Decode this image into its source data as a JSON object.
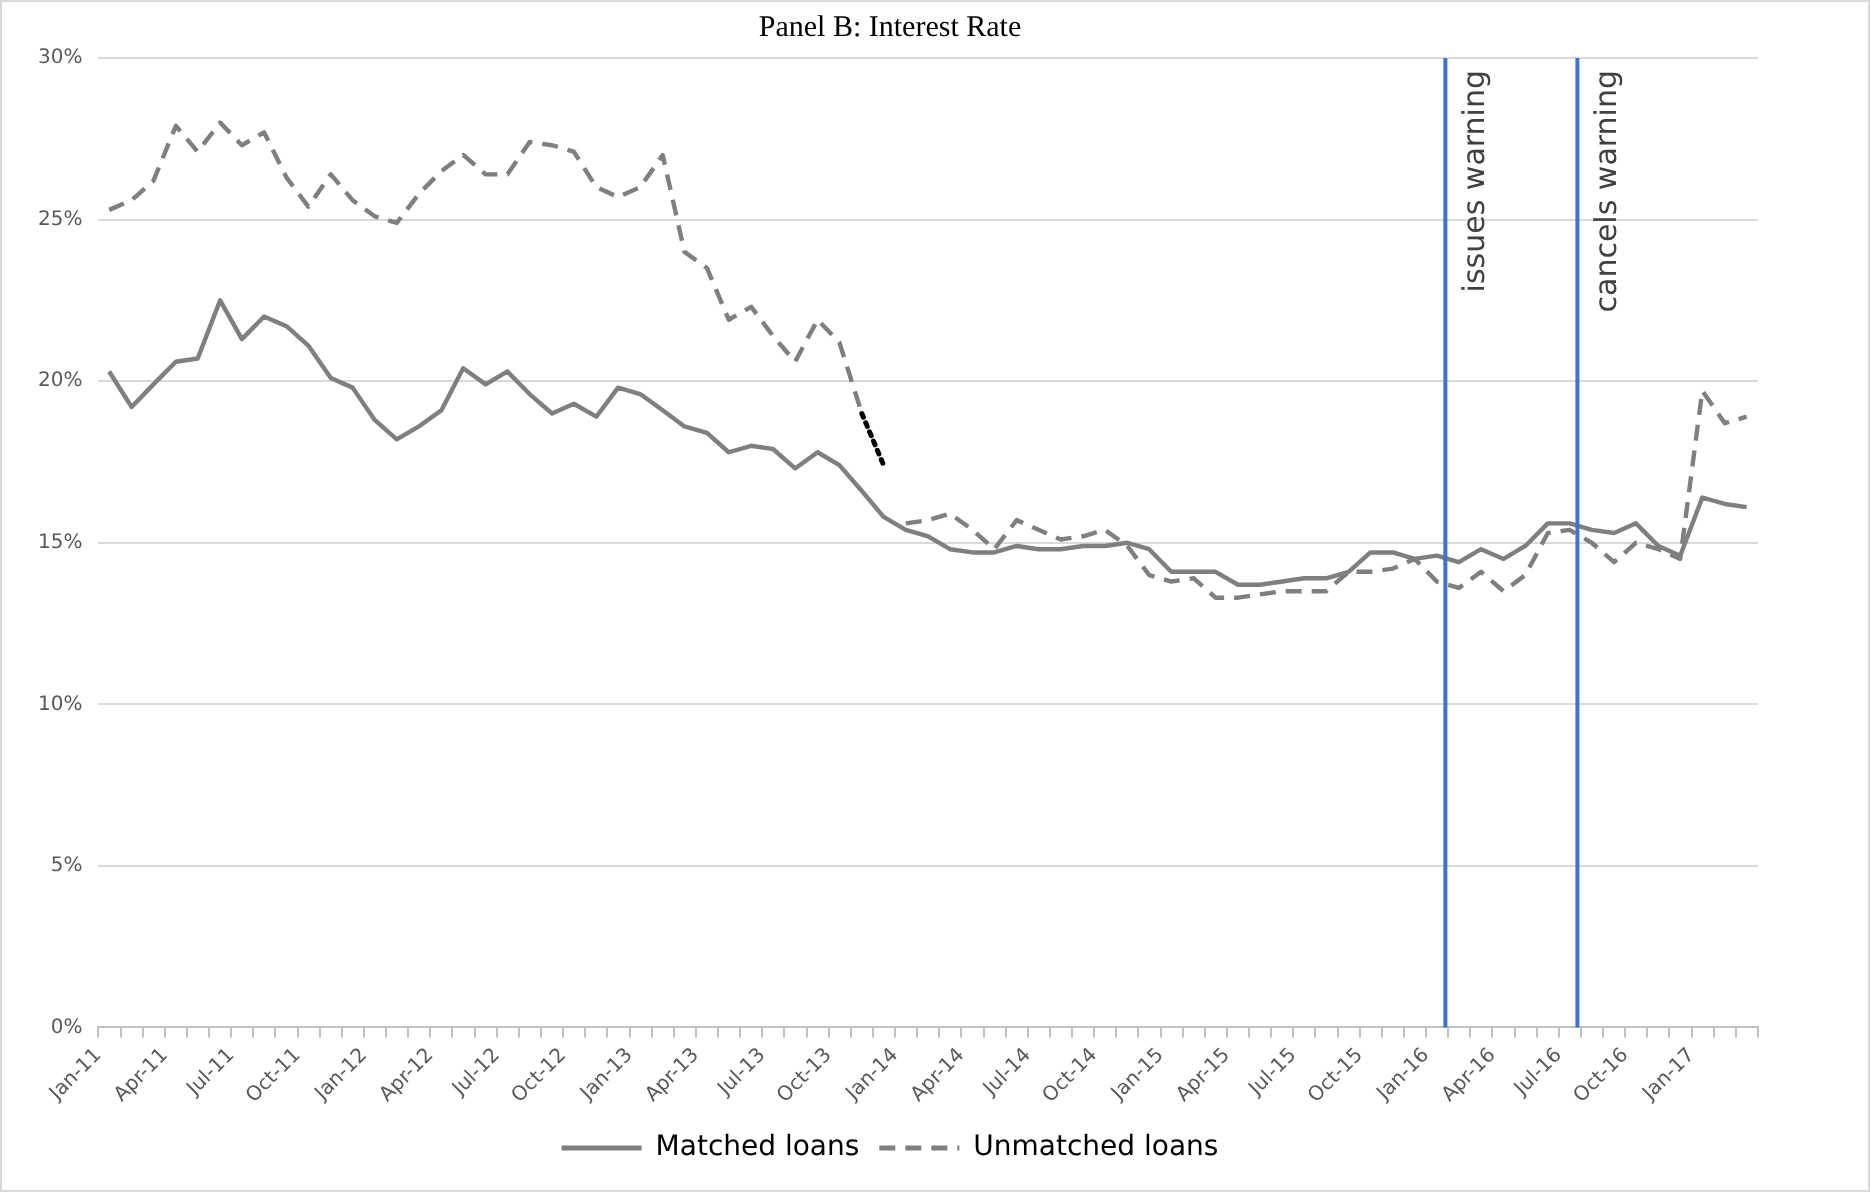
{
  "chart_data": {
    "type": "line",
    "title": "Panel B: Interest Rate",
    "x": [
      "2011-01-16",
      "2011-02-15",
      "2011-03-16",
      "2011-04-16",
      "2011-05-16",
      "2011-06-16",
      "2011-07-16",
      "2011-08-16",
      "2011-09-16",
      "2011-10-16",
      "2011-11-16",
      "2011-12-16",
      "2012-01-16",
      "2012-02-15",
      "2012-03-16",
      "2012-04-16",
      "2012-05-16",
      "2012-06-16",
      "2012-07-16",
      "2012-08-16",
      "2012-09-16",
      "2012-10-16",
      "2012-11-16",
      "2012-12-16",
      "2013-01-16",
      "2013-02-15",
      "2013-03-16",
      "2013-04-16",
      "2013-05-16",
      "2013-06-16",
      "2013-07-16",
      "2013-08-16",
      "2013-09-16",
      "2013-10-16",
      "2013-11-16",
      "2013-12-16",
      "2014-01-16",
      "2014-02-15",
      "2014-03-16",
      "2014-04-16",
      "2014-05-16",
      "2014-06-16",
      "2014-07-16",
      "2014-08-16",
      "2014-09-16",
      "2014-10-16",
      "2014-11-16",
      "2014-12-16",
      "2015-01-16",
      "2015-02-15",
      "2015-03-16",
      "2015-04-16",
      "2015-05-16",
      "2015-06-16",
      "2015-07-16",
      "2015-08-16",
      "2015-09-16",
      "2015-10-16",
      "2015-11-16",
      "2015-12-16",
      "2016-01-16",
      "2016-02-15",
      "2016-03-16",
      "2016-04-16",
      "2016-05-16",
      "2016-06-16",
      "2016-07-16",
      "2016-08-16",
      "2016-09-16",
      "2016-10-16",
      "2016-11-16",
      "2016-12-16",
      "2017-01-16",
      "2017-02-15",
      "2017-03-16"
    ],
    "series": [
      {
        "name": "Matched loans",
        "color": "#7f7f7f",
        "line_style": "solid",
        "values": [
          20.3,
          19.2,
          19.9,
          20.6,
          20.7,
          22.5,
          21.3,
          22.0,
          21.7,
          21.1,
          20.1,
          19.8,
          18.8,
          18.2,
          18.6,
          19.1,
          20.4,
          19.9,
          20.3,
          19.6,
          19.0,
          19.3,
          18.9,
          19.8,
          19.6,
          19.1,
          18.6,
          18.4,
          17.8,
          18.0,
          17.9,
          17.3,
          17.8,
          17.4,
          16.6,
          15.8,
          15.4,
          15.2,
          14.8,
          14.7,
          14.7,
          14.9,
          14.8,
          14.8,
          14.9,
          14.9,
          15.0,
          14.8,
          14.1,
          14.1,
          14.1,
          13.7,
          13.7,
          13.8,
          13.9,
          13.9,
          14.1,
          14.7,
          14.7,
          14.5,
          14.6,
          14.4,
          14.8,
          14.5,
          14.9,
          15.6,
          15.6,
          15.4,
          15.3,
          15.6,
          14.9,
          14.6,
          16.4,
          16.2,
          16.1
        ]
      },
      {
        "name": "Unmatched loans",
        "color": "#7f7f7f",
        "line_style": "dashed",
        "values": [
          25.3,
          25.6,
          26.2,
          27.9,
          27.1,
          28.0,
          27.3,
          27.7,
          26.3,
          25.4,
          26.4,
          25.6,
          25.1,
          24.9,
          25.8,
          26.5,
          27.0,
          26.4,
          26.4,
          27.4,
          27.3,
          27.1,
          26.0,
          25.7,
          26.0,
          27.0,
          24.0,
          23.5,
          21.9,
          22.3,
          21.4,
          20.6,
          21.9,
          21.2,
          19.0,
          null,
          15.6,
          15.7,
          15.9,
          15.4,
          14.8,
          15.7,
          15.4,
          15.1,
          15.2,
          15.4,
          14.9,
          14.0,
          13.8,
          13.9,
          13.3,
          13.3,
          13.4,
          13.5,
          13.5,
          13.5,
          14.1,
          14.1,
          14.2,
          14.5,
          13.8,
          13.6,
          14.1,
          13.5,
          14.0,
          15.3,
          15.4,
          15.0,
          14.4,
          15.0,
          14.8,
          14.5,
          19.7,
          18.7,
          18.9
        ]
      },
      {
        "color": "#000000",
        "line_style": "dotted",
        "values": [
          null,
          null,
          null,
          null,
          null,
          null,
          null,
          null,
          null,
          null,
          null,
          null,
          null,
          null,
          null,
          null,
          null,
          null,
          null,
          null,
          null,
          null,
          null,
          null,
          null,
          null,
          null,
          null,
          null,
          null,
          null,
          null,
          null,
          null,
          19.0,
          17.4,
          null,
          null,
          null,
          null,
          null,
          null,
          null,
          null,
          null,
          null,
          null,
          null,
          null,
          null,
          null,
          null,
          null,
          null,
          null,
          null,
          null,
          null,
          null,
          null,
          null,
          null,
          null,
          null,
          null,
          null,
          null,
          null,
          null,
          null,
          null,
          null,
          null,
          null,
          null
        ]
      }
    ],
    "xlim": [
      "2011-01-01",
      "2017-04-01"
    ],
    "xticks": [
      {
        "value": "2011-01-01",
        "label": "Jan-11"
      },
      {
        "value": "2011-02-01",
        "label": null
      },
      {
        "value": "2011-03-01",
        "label": null
      },
      {
        "value": "2011-04-01",
        "label": "Apr-11"
      },
      {
        "value": "2011-05-01",
        "label": null
      },
      {
        "value": "2011-06-01",
        "label": null
      },
      {
        "value": "2011-07-01",
        "label": "Jul-11"
      },
      {
        "value": "2011-08-01",
        "label": null
      },
      {
        "value": "2011-09-01",
        "label": null
      },
      {
        "value": "2011-10-01",
        "label": "Oct-11"
      },
      {
        "value": "2011-11-01",
        "label": null
      },
      {
        "value": "2011-12-01",
        "label": null
      },
      {
        "value": "2012-01-01",
        "label": "Jan-12"
      },
      {
        "value": "2012-02-01",
        "label": null
      },
      {
        "value": "2012-03-01",
        "label": null
      },
      {
        "value": "2012-04-01",
        "label": "Apr-12"
      },
      {
        "value": "2012-05-01",
        "label": null
      },
      {
        "value": "2012-06-01",
        "label": null
      },
      {
        "value": "2012-07-01",
        "label": "Jul-12"
      },
      {
        "value": "2012-08-01",
        "label": null
      },
      {
        "value": "2012-09-01",
        "label": null
      },
      {
        "value": "2012-10-01",
        "label": "Oct-12"
      },
      {
        "value": "2012-11-01",
        "label": null
      },
      {
        "value": "2012-12-01",
        "label": null
      },
      {
        "value": "2013-01-01",
        "label": "Jan-13"
      },
      {
        "value": "2013-02-01",
        "label": null
      },
      {
        "value": "2013-03-01",
        "label": null
      },
      {
        "value": "2013-04-01",
        "label": "Apr-13"
      },
      {
        "value": "2013-05-01",
        "label": null
      },
      {
        "value": "2013-06-01",
        "label": null
      },
      {
        "value": "2013-07-01",
        "label": "Jul-13"
      },
      {
        "value": "2013-08-01",
        "label": null
      },
      {
        "value": "2013-09-01",
        "label": null
      },
      {
        "value": "2013-10-01",
        "label": "Oct-13"
      },
      {
        "value": "2013-11-01",
        "label": null
      },
      {
        "value": "2013-12-01",
        "label": null
      },
      {
        "value": "2014-01-01",
        "label": "Jan-14"
      },
      {
        "value": "2014-02-01",
        "label": null
      },
      {
        "value": "2014-03-01",
        "label": null
      },
      {
        "value": "2014-04-01",
        "label": "Apr-14"
      },
      {
        "value": "2014-05-01",
        "label": null
      },
      {
        "value": "2014-06-01",
        "label": null
      },
      {
        "value": "2014-07-01",
        "label": "Jul-14"
      },
      {
        "value": "2014-08-01",
        "label": null
      },
      {
        "value": "2014-09-01",
        "label": null
      },
      {
        "value": "2014-10-01",
        "label": "Oct-14"
      },
      {
        "value": "2014-11-01",
        "label": null
      },
      {
        "value": "2014-12-01",
        "label": null
      },
      {
        "value": "2015-01-01",
        "label": "Jan-15"
      },
      {
        "value": "2015-02-01",
        "label": null
      },
      {
        "value": "2015-03-01",
        "label": null
      },
      {
        "value": "2015-04-01",
        "label": "Apr-15"
      },
      {
        "value": "2015-05-01",
        "label": null
      },
      {
        "value": "2015-06-01",
        "label": null
      },
      {
        "value": "2015-07-01",
        "label": "Jul-15"
      },
      {
        "value": "2015-08-01",
        "label": null
      },
      {
        "value": "2015-09-01",
        "label": null
      },
      {
        "value": "2015-10-01",
        "label": "Oct-15"
      },
      {
        "value": "2015-11-01",
        "label": null
      },
      {
        "value": "2015-12-01",
        "label": null
      },
      {
        "value": "2016-01-01",
        "label": "Jan-16"
      },
      {
        "value": "2016-02-01",
        "label": null
      },
      {
        "value": "2016-03-01",
        "label": null
      },
      {
        "value": "2016-04-01",
        "label": "Apr-16"
      },
      {
        "value": "2016-05-01",
        "label": null
      },
      {
        "value": "2016-06-01",
        "label": null
      },
      {
        "value": "2016-07-01",
        "label": "Jul-16"
      },
      {
        "value": "2016-08-01",
        "label": null
      },
      {
        "value": "2016-09-01",
        "label": null
      },
      {
        "value": "2016-10-01",
        "label": "Oct-16"
      },
      {
        "value": "2016-11-01",
        "label": null
      },
      {
        "value": "2016-12-01",
        "label": null
      },
      {
        "value": "2017-01-01",
        "label": "Jan-17"
      },
      {
        "value": "2017-02-01",
        "label": null
      },
      {
        "value": "2017-03-01",
        "label": null
      },
      {
        "value": "2017-04-01",
        "label": null
      }
    ],
    "ylim": [
      0,
      30
    ],
    "yticks": [
      {
        "value": 0,
        "label": "0%"
      },
      {
        "value": 5,
        "label": "5%"
      },
      {
        "value": 10,
        "label": "10%"
      },
      {
        "value": 15,
        "label": "15%"
      },
      {
        "value": 20,
        "label": "20%"
      },
      {
        "value": 25,
        "label": "25%"
      },
      {
        "value": 30,
        "label": "30%"
      }
    ],
    "grid": "y",
    "legend": "bottom",
    "marker": "none",
    "ref_lines": [
      {
        "axis": "x",
        "value": "2016-01-28",
        "label": "issues warning",
        "color": "#4472c4"
      },
      {
        "axis": "x",
        "value": "2016-07-27",
        "label": "cancels warning",
        "color": "#4472c4"
      }
    ]
  }
}
